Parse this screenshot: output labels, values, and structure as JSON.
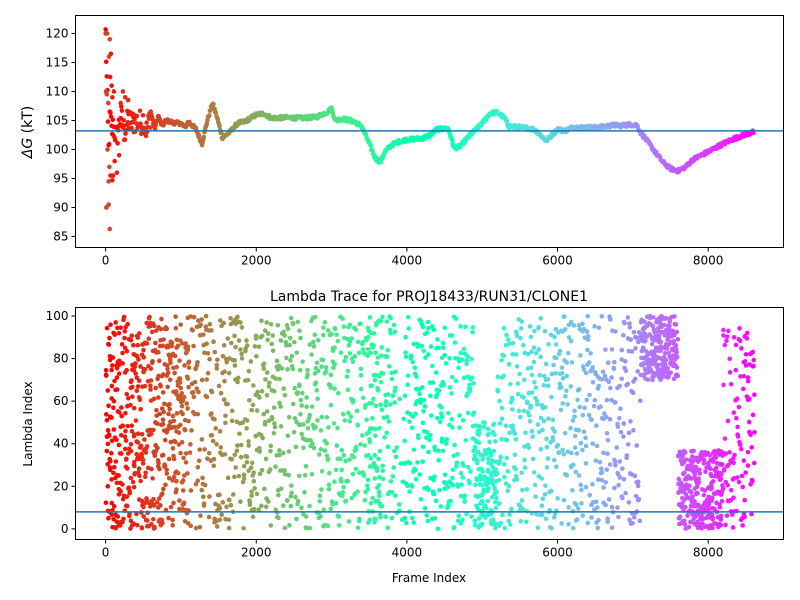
{
  "chart_data": [
    {
      "type": "scatter",
      "title": "",
      "xlabel": "",
      "ylabel": "ΔG (kT)",
      "ylabel_symbol": "ΔG",
      "ylabel_unit": " (kT)",
      "xlim": [
        -400,
        9000
      ],
      "ylim": [
        83.1,
        123.1
      ],
      "xticks": [
        0,
        2000,
        4000,
        6000,
        8000
      ],
      "yticks": [
        85,
        90,
        95,
        100,
        105,
        110,
        115,
        120
      ],
      "hline": 103.2,
      "hline_color": "#1f77b4",
      "colormap": "rainbow (red at frame 0 to violet at last frame)",
      "grid": false,
      "x_max": 8600,
      "trace": [
        [
          0,
          120
        ],
        [
          20,
          110
        ],
        [
          40,
          100
        ],
        [
          60,
          106
        ],
        [
          80,
          103
        ],
        [
          100,
          104
        ],
        [
          150,
          102
        ],
        [
          200,
          106
        ],
        [
          250,
          103
        ],
        [
          300,
          105
        ],
        [
          350,
          104.5
        ],
        [
          400,
          105
        ],
        [
          450,
          104.6
        ],
        [
          500,
          105.2
        ],
        [
          550,
          103
        ],
        [
          600,
          106.5
        ],
        [
          650,
          103.5
        ],
        [
          700,
          105.8
        ],
        [
          750,
          104
        ],
        [
          800,
          105
        ],
        [
          900,
          104.6
        ],
        [
          1000,
          104.5
        ],
        [
          1050,
          103.8
        ],
        [
          1100,
          104.8
        ],
        [
          1200,
          103.5
        ],
        [
          1280,
          101
        ],
        [
          1350,
          105
        ],
        [
          1420,
          108
        ],
        [
          1480,
          105.5
        ],
        [
          1550,
          102
        ],
        [
          1650,
          103
        ],
        [
          1750,
          104.5
        ],
        [
          1850,
          104.8
        ],
        [
          2000,
          106
        ],
        [
          2100,
          106.2
        ],
        [
          2200,
          105.4
        ],
        [
          2400,
          105.5
        ],
        [
          2600,
          105.4
        ],
        [
          2800,
          105.6
        ],
        [
          2950,
          106.5
        ],
        [
          3000,
          107.1
        ],
        [
          3050,
          105
        ],
        [
          3150,
          105.3
        ],
        [
          3300,
          104.8
        ],
        [
          3400,
          104
        ],
        [
          3500,
          101
        ],
        [
          3580,
          98.5
        ],
        [
          3650,
          97.8
        ],
        [
          3700,
          99.5
        ],
        [
          3800,
          100.8
        ],
        [
          3900,
          101.4
        ],
        [
          4000,
          101.7
        ],
        [
          4200,
          101.9
        ],
        [
          4300,
          102.4
        ],
        [
          4400,
          103.5
        ],
        [
          4550,
          103.6
        ],
        [
          4630,
          100.2
        ],
        [
          4700,
          100.5
        ],
        [
          4850,
          102.6
        ],
        [
          5000,
          104.5
        ],
        [
          5100,
          106.2
        ],
        [
          5200,
          106.4
        ],
        [
          5300,
          105.4
        ],
        [
          5350,
          104
        ],
        [
          5600,
          103.7
        ],
        [
          5700,
          103.4
        ],
        [
          5850,
          101.5
        ],
        [
          5950,
          102.8
        ],
        [
          6000,
          103.5
        ],
        [
          6100,
          103.2
        ],
        [
          6200,
          103.8
        ],
        [
          6350,
          103.8
        ],
        [
          6500,
          103.8
        ],
        [
          6600,
          103.9
        ],
        [
          6750,
          104.2
        ],
        [
          6850,
          104.1
        ],
        [
          6950,
          104.3
        ],
        [
          7050,
          104.2
        ],
        [
          7100,
          103
        ],
        [
          7200,
          101.3
        ],
        [
          7300,
          99.5
        ],
        [
          7400,
          97.8
        ],
        [
          7500,
          96.7
        ],
        [
          7600,
          96.3
        ],
        [
          7700,
          97
        ],
        [
          7800,
          98.3
        ],
        [
          8000,
          99.6
        ],
        [
          8200,
          101
        ],
        [
          8350,
          101.9
        ],
        [
          8500,
          102.6
        ],
        [
          8600,
          103
        ]
      ],
      "early_scatter_points": [
        [
          0,
          120
        ],
        [
          20,
          120
        ],
        [
          55,
          119
        ],
        [
          45,
          116
        ],
        [
          70,
          116.5
        ],
        [
          60,
          112.5
        ],
        [
          5,
          110
        ],
        [
          15,
          109.5
        ],
        [
          35,
          108
        ],
        [
          80,
          111
        ],
        [
          90,
          109
        ],
        [
          110,
          110
        ],
        [
          25,
          100
        ],
        [
          50,
          97
        ],
        [
          40,
          94.5
        ],
        [
          65,
          95.5
        ],
        [
          90,
          94.7
        ],
        [
          100,
          95.5
        ],
        [
          150,
          96
        ],
        [
          10,
          90
        ],
        [
          40,
          90.5
        ],
        [
          55,
          86.3
        ],
        [
          200,
          108
        ],
        [
          230,
          110
        ],
        [
          260,
          109
        ],
        [
          300,
          108.5
        ],
        [
          120,
          98
        ],
        [
          180,
          99
        ]
      ]
    },
    {
      "type": "scatter",
      "title": "Lambda Trace for PROJ18433/RUN31/CLONE1",
      "xlabel": "Frame Index",
      "ylabel": "Lambda Index",
      "xlim": [
        -400,
        9000
      ],
      "ylim": [
        -5,
        104
      ],
      "xticks": [
        0,
        2000,
        4000,
        6000,
        8000
      ],
      "yticks": [
        0,
        20,
        40,
        60,
        80,
        100
      ],
      "hline": 8,
      "hline_color": "#1f77b4",
      "colormap": "rainbow (red at frame 0 to violet at last frame)",
      "grid": false,
      "x_max": 8600,
      "points_per_column": 9,
      "column_step": 20,
      "density_regions": [
        {
          "x_range": [
            0,
            1100
          ],
          "y_range": [
            0,
            100
          ],
          "density": "high"
        },
        {
          "x_range": [
            1100,
            3450
          ],
          "y_range": [
            0,
            100
          ],
          "density": "medium"
        },
        {
          "x_range": [
            3450,
            3650
          ],
          "y_range": [
            0,
            100
          ],
          "density": "high"
        },
        {
          "x_range": [
            3650,
            3850
          ],
          "y_range": [
            0,
            100
          ],
          "density": "medium"
        },
        {
          "x_range": [
            3850,
            3950
          ],
          "y_range": [
            0,
            70
          ],
          "density": "low"
        },
        {
          "x_range": [
            3950,
            4900
          ],
          "y_range": [
            0,
            100
          ],
          "density": "medium"
        },
        {
          "x_range": [
            4900,
            5200
          ],
          "y_range": [
            0,
            50
          ],
          "density": "high"
        },
        {
          "x_range": [
            5200,
            6050
          ],
          "y_range": [
            0,
            100
          ],
          "density": "medium"
        },
        {
          "x_range": [
            6050,
            6500
          ],
          "y_range": [
            0,
            100
          ],
          "density": "medium"
        },
        {
          "x_range": [
            6500,
            7100
          ],
          "y_range": [
            0,
            100
          ],
          "density": "medium"
        },
        {
          "x_range": [
            7100,
            7600
          ],
          "y_range": [
            70,
            100
          ],
          "density": "high"
        },
        {
          "x_range": [
            7600,
            8200
          ],
          "y_range": [
            0,
            37
          ],
          "density": "high"
        },
        {
          "x_range": [
            8200,
            8600
          ],
          "y_range": [
            0,
            95
          ],
          "density": "medium"
        }
      ]
    }
  ]
}
